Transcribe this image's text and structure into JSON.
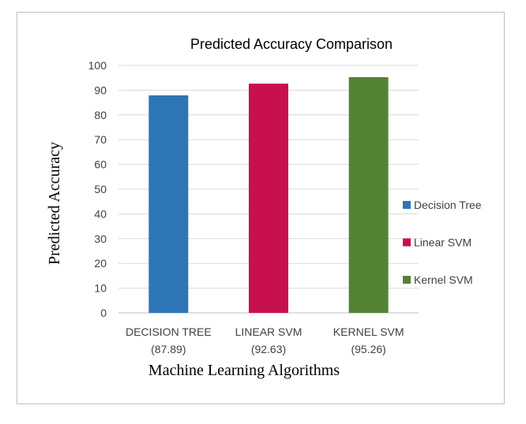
{
  "chart_data": {
    "type": "bar",
    "title": "Predicted Accuracy Comparison",
    "xlabel": "Machine Learning Algorithms",
    "ylabel": "Predicted Accuracy",
    "ylim": [
      0,
      100
    ],
    "yticks": [
      0,
      10,
      20,
      30,
      40,
      50,
      60,
      70,
      80,
      90,
      100
    ],
    "grid": true,
    "legend_position": "right",
    "categories": [
      {
        "line1": "DECISION TREE",
        "line2": "(87.89)"
      },
      {
        "line1": "LINEAR SVM",
        "line2": "(92.63)"
      },
      {
        "line1": "KERNEL SVM",
        "line2": "(95.26)"
      }
    ],
    "series": [
      {
        "name": "Decision Tree",
        "value": 87.89,
        "color": "#2e75b6"
      },
      {
        "name": "Linear SVM",
        "value": 92.63,
        "color": "#c8104f"
      },
      {
        "name": "Kernel SVM",
        "value": 95.26,
        "color": "#548235"
      }
    ]
  }
}
